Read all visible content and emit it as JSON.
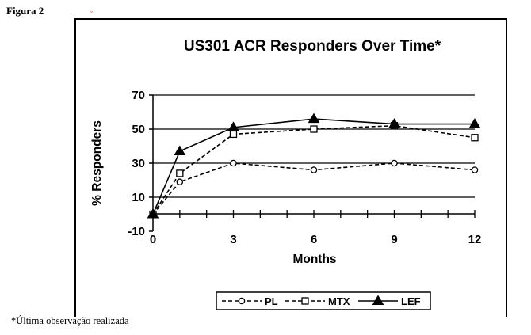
{
  "figure_label": "Figura 2",
  "footnote": "*Última observação realizada",
  "chart_data": {
    "type": "line",
    "title": "US301 ACR Responders Over Time*",
    "xlabel": "Months",
    "ylabel": "% Responders",
    "x": [
      0,
      1,
      3,
      6,
      9,
      12
    ],
    "xticks": [
      "0",
      "3",
      "6",
      "9",
      "12"
    ],
    "xtick_values": [
      0,
      3,
      6,
      9,
      12
    ],
    "yticks": [
      "-10",
      "10",
      "30",
      "50",
      "70"
    ],
    "ytick_values": [
      -10,
      10,
      30,
      50,
      70
    ],
    "xlim": [
      0,
      12
    ],
    "ylim": [
      -10,
      70
    ],
    "grid": "horizontal",
    "legend_position": "bottom",
    "series": [
      {
        "name": "PL",
        "values": [
          0,
          19,
          30,
          26,
          30,
          26
        ],
        "marker": "circle",
        "line": "dashed",
        "color": "#000000"
      },
      {
        "name": "MTX",
        "values": [
          0,
          24,
          47,
          50,
          52,
          45
        ],
        "marker": "square",
        "line": "dashed",
        "color": "#000000"
      },
      {
        "name": "LEF",
        "values": [
          0,
          37,
          51,
          56,
          53,
          53
        ],
        "marker": "triangle",
        "line": "solid",
        "color": "#000000"
      }
    ]
  }
}
